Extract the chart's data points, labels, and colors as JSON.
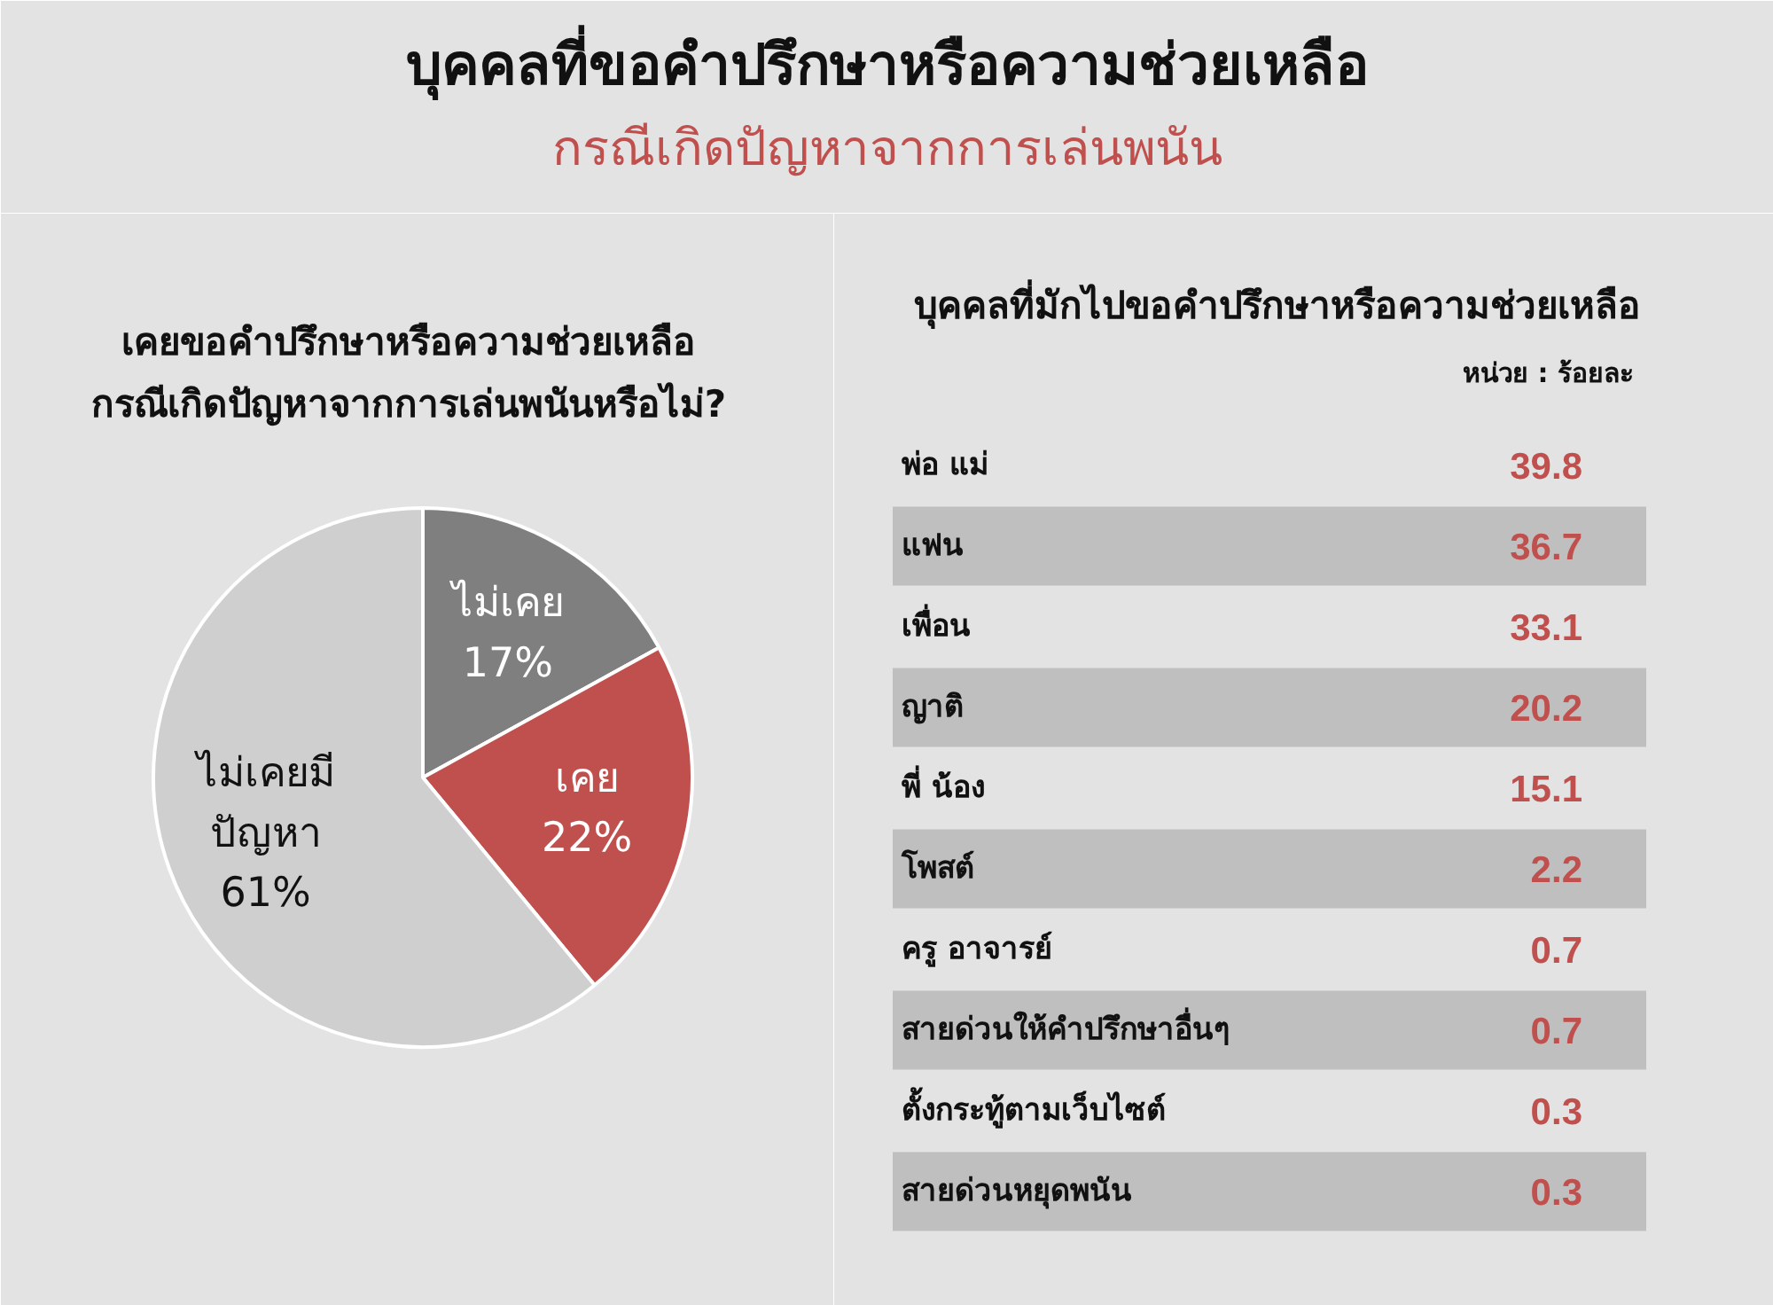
{
  "chart_data": [
    {
      "type": "other",
      "title": "บุคคลที่ขอคำปรึกษาหรือความช่วยเหลือ",
      "subtitle": "กรณีเกิดปัญหาจากการเล่นพนัน"
    },
    {
      "type": "pie",
      "title": "เคยขอคำปรึกษาหรือความช่วยเหลือ\nกรณีเกิดปัญหาจากการเล่นพนันหรือไม่?",
      "categories": [
        "ไม่เคย",
        "เคย",
        "ไม่เคยมี\nปัญหา"
      ],
      "values": [
        17,
        22,
        61
      ],
      "colors": [
        "#7f7f7f",
        "#c0504d",
        "#d0cfcf"
      ],
      "value_labels": [
        "17%",
        "22%",
        "61%"
      ]
    },
    {
      "type": "other",
      "title": "บุคคลที่มักไปขอคำปรึกษาหรือความช่วยเหลือ",
      "annotations": [
        "หน่วย : ร้อยละ"
      ],
      "categories": [
        "พ่อ แม่",
        "แฟน",
        "เพื่อน",
        "ญาติ",
        "พี่ น้อง",
        "โพสต์",
        "ครู อาจารย์",
        "สายด่วนให้คำปรึกษาอื่นๆ",
        "ตั้งกระทู้ตามเว็บไซต์",
        "สายด่วนหยุดพนัน"
      ],
      "values": [
        39.8,
        36.7,
        33.1,
        20.2,
        15.1,
        2.2,
        0.7,
        0.7,
        0.3,
        0.3
      ],
      "data_labels": true
    }
  ]
}
